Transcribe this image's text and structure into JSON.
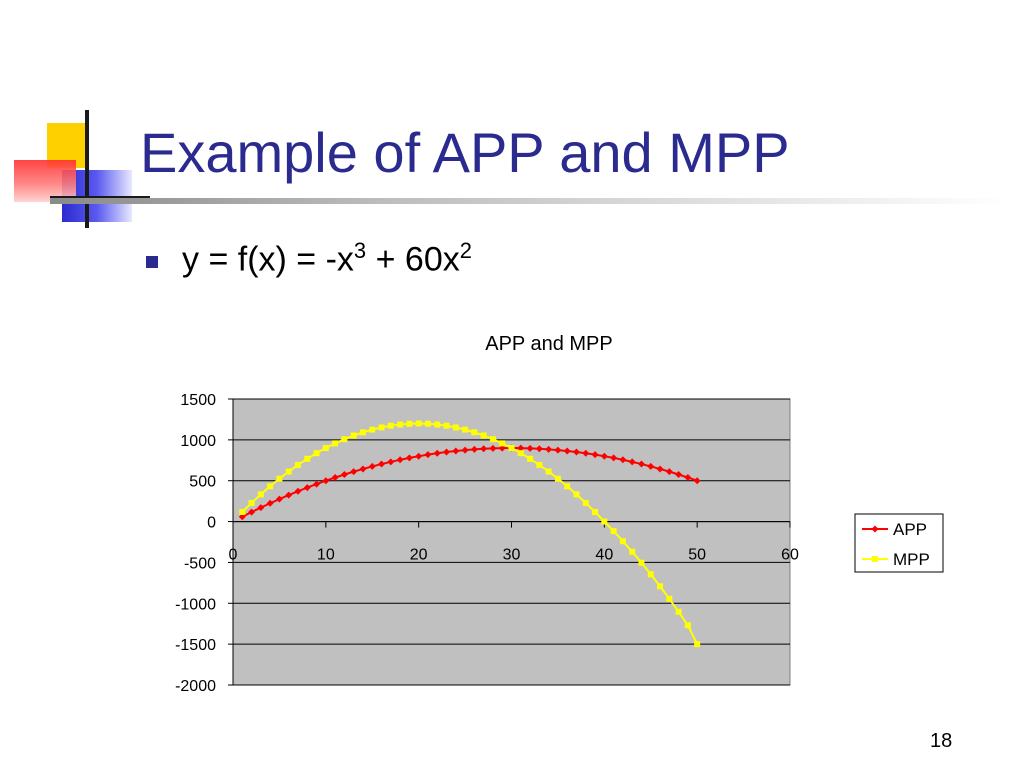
{
  "slide": {
    "title": "Example of APP and MPP",
    "bullet": {
      "prefix": "y = f(x) = -x",
      "exp1": "3",
      "middle": " + 60x",
      "exp2": "2"
    },
    "page_number": "18"
  },
  "colors": {
    "title": "#2b2b8f",
    "plot_area": "#c0c0c0",
    "app": "#ff0000",
    "mpp": "#ffff00"
  },
  "chart_data": {
    "type": "line",
    "title": "APP and MPP",
    "xlim": [
      0,
      60
    ],
    "ylim": [
      -2000,
      1500
    ],
    "xticks": [
      0,
      10,
      20,
      30,
      40,
      50,
      60
    ],
    "yticks": [
      1500,
      1000,
      500,
      0,
      -500,
      -1000,
      -1500,
      -2000
    ],
    "grid": true,
    "legend_position": "right",
    "series": [
      {
        "name": "APP",
        "color": "#ff0000",
        "x": [
          1,
          2,
          3,
          4,
          5,
          6,
          7,
          8,
          9,
          10,
          11,
          12,
          13,
          14,
          15,
          16,
          17,
          18,
          19,
          20,
          21,
          22,
          23,
          24,
          25,
          26,
          27,
          28,
          29,
          30,
          31,
          32,
          33,
          34,
          35,
          36,
          37,
          38,
          39,
          40,
          41,
          42,
          43,
          44,
          45,
          46,
          47,
          48,
          49,
          50
        ],
        "values": [
          59,
          116,
          171,
          224,
          275,
          324,
          371,
          416,
          459,
          500,
          539,
          576,
          611,
          644,
          675,
          704,
          731,
          756,
          779,
          800,
          819,
          836,
          851,
          864,
          875,
          884,
          891,
          896,
          899,
          900,
          899,
          896,
          891,
          884,
          875,
          864,
          851,
          836,
          819,
          800,
          779,
          756,
          731,
          704,
          675,
          644,
          611,
          576,
          539,
          500
        ]
      },
      {
        "name": "MPP",
        "color": "#ffff00",
        "x": [
          1,
          2,
          3,
          4,
          5,
          6,
          7,
          8,
          9,
          10,
          11,
          12,
          13,
          14,
          15,
          16,
          17,
          18,
          19,
          20,
          21,
          22,
          23,
          24,
          25,
          26,
          27,
          28,
          29,
          30,
          31,
          32,
          33,
          34,
          35,
          36,
          37,
          38,
          39,
          40,
          41,
          42,
          43,
          44,
          45,
          46,
          47,
          48,
          49,
          50
        ],
        "values": [
          117,
          228,
          333,
          432,
          525,
          612,
          693,
          768,
          837,
          900,
          957,
          1008,
          1053,
          1092,
          1125,
          1152,
          1173,
          1188,
          1197,
          1200,
          1197,
          1188,
          1173,
          1152,
          1125,
          1092,
          1053,
          1008,
          957,
          900,
          837,
          768,
          693,
          612,
          525,
          432,
          333,
          228,
          117,
          0,
          -117,
          -240,
          -369,
          -504,
          -645,
          -792,
          -945,
          -1104,
          -1269,
          -1500
        ]
      }
    ]
  }
}
